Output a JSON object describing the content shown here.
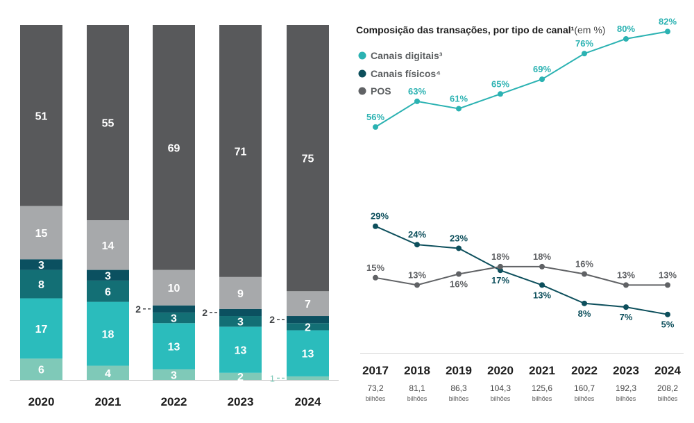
{
  "colors": {
    "pos": "#58595b",
    "light_gray": "#a7a9ab",
    "dark_teal": "#0b5060",
    "teal_mid": "#136f75",
    "teal": "#2bbcbc",
    "pale_teal": "#7fc9b8",
    "digital_line": "#2bb2b2",
    "physical_line": "#0d4f5c",
    "pos_line": "#606265"
  },
  "chart_data": [
    {
      "type": "bar",
      "stacked": true,
      "categories": [
        "2020",
        "2021",
        "2022",
        "2023",
        "2024"
      ],
      "ylim": [
        0,
        100
      ],
      "series": [
        {
          "key": "s1",
          "color_key": "pale_teal",
          "values": [
            6,
            4,
            3,
            2,
            1
          ]
        },
        {
          "key": "s2",
          "color_key": "teal",
          "values": [
            17,
            18,
            13,
            13,
            13
          ]
        },
        {
          "key": "s3",
          "color_key": "teal_mid",
          "values": [
            8,
            6,
            3,
            3,
            2
          ]
        },
        {
          "key": "s4",
          "color_key": "dark_teal",
          "values": [
            3,
            3,
            2,
            2,
            2
          ]
        },
        {
          "key": "s5",
          "color_key": "light_gray",
          "values": [
            15,
            14,
            10,
            9,
            7
          ]
        },
        {
          "key": "s6",
          "color_key": "pos",
          "values": [
            51,
            55,
            69,
            71,
            75
          ]
        }
      ],
      "value_labels": [
        [
          "6",
          "4",
          "3",
          "2",
          "1"
        ],
        [
          "17",
          "18",
          "13",
          "13",
          "13"
        ],
        [
          "8",
          "6",
          "3",
          "3",
          "2"
        ],
        [
          "3",
          "3",
          "2",
          "2",
          "2"
        ],
        [
          "15",
          "14",
          "10",
          "9",
          "7"
        ],
        [
          "51",
          "55",
          "69",
          "71",
          "75"
        ]
      ],
      "side_labels": [
        {
          "bar": 2,
          "series": 3,
          "text": "2"
        },
        {
          "bar": 3,
          "series": 3,
          "text": "2"
        },
        {
          "bar": 4,
          "series": 3,
          "text": "2"
        },
        {
          "bar": 4,
          "series": 0,
          "text": "1"
        }
      ]
    },
    {
      "type": "line",
      "title": "Composição das transações, por tipo de canal¹",
      "title_unit": "(em %)",
      "x": [
        "2017",
        "2018",
        "2019",
        "2020",
        "2021",
        "2022",
        "2023",
        "2024"
      ],
      "totals": [
        "73,2",
        "81,1",
        "86,3",
        "104,3",
        "125,6",
        "160,7",
        "192,3",
        "208,2"
      ],
      "totals_unit": "bilhões",
      "ylim": [
        0,
        90
      ],
      "legend": [
        {
          "label": "Canais digitais³",
          "color_key": "digital_line"
        },
        {
          "label": "Canais físicos⁴",
          "color_key": "physical_line"
        },
        {
          "label": "POS",
          "color_key": "pos_line"
        }
      ],
      "series": [
        {
          "name": "Canais digitais³",
          "color_key": "digital_line",
          "values": [
            56,
            63,
            61,
            65,
            69,
            76,
            80,
            82
          ],
          "labels": [
            "56%",
            "63%",
            "61%",
            "65%",
            "69%",
            "76%",
            "80%",
            "82%"
          ],
          "label_pos": [
            "above",
            "above",
            "above",
            "above",
            "above",
            "above",
            "above",
            "above"
          ]
        },
        {
          "name": "Canais físicos⁴",
          "color_key": "physical_line",
          "values": [
            29,
            24,
            23,
            17,
            13,
            8,
            7,
            5
          ],
          "labels": [
            "29%",
            "24%",
            "23%",
            "17%",
            "13%",
            "8%",
            "7%",
            "5%"
          ],
          "label_pos": [
            "above",
            "above",
            "above",
            "below",
            "below",
            "below",
            "below",
            "below"
          ]
        },
        {
          "name": "POS",
          "color_key": "pos_line",
          "values": [
            15,
            13,
            16,
            18,
            18,
            16,
            13,
            13
          ],
          "labels": [
            "15%",
            "13%",
            "16%",
            "18%",
            "18%",
            "16%",
            "13%",
            "13%"
          ],
          "label_pos": [
            "above",
            "above",
            "below",
            "above",
            "above",
            "above",
            "above",
            "above"
          ]
        }
      ]
    }
  ]
}
